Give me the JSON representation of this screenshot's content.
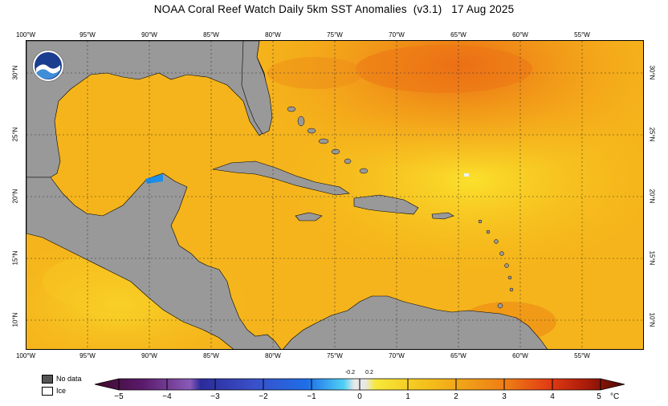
{
  "title": "NOAA Coral Reef Watch Daily 5km SST Anomalies  (v3.1)   17 Aug 2025",
  "logo_text": "NOAA",
  "lon_labels": [
    "100°W",
    "95°W",
    "90°W",
    "85°W",
    "80°W",
    "75°W",
    "70°W",
    "65°W",
    "60°W",
    "55°W"
  ],
  "lat_labels": [
    "30°N",
    "25°N",
    "20°N",
    "15°N",
    "10°N"
  ],
  "legend": {
    "no_data": "No data",
    "ice": "Ice",
    "no_data_color": "#555555",
    "ice_color": "#ffffff"
  },
  "colorbar": {
    "ticks": [
      "−5",
      "−4",
      "−3",
      "−2",
      "−1",
      "0",
      "1",
      "2",
      "3",
      "4",
      "5"
    ],
    "small_ticks": [
      "-0.2",
      "0.2"
    ],
    "unit": "°C",
    "colors": [
      "#3d0a2b",
      "#5a1a6b",
      "#7b3fa8",
      "#2b2b9a",
      "#3a50c8",
      "#1e6ee8",
      "#1aa0f0",
      "#4fd0f5",
      "#e8e8e8",
      "#f7e83a",
      "#f5c21c",
      "#f0a018",
      "#ee7a16",
      "#e84c12",
      "#c82010",
      "#8a1208",
      "#4a0a04"
    ]
  }
}
